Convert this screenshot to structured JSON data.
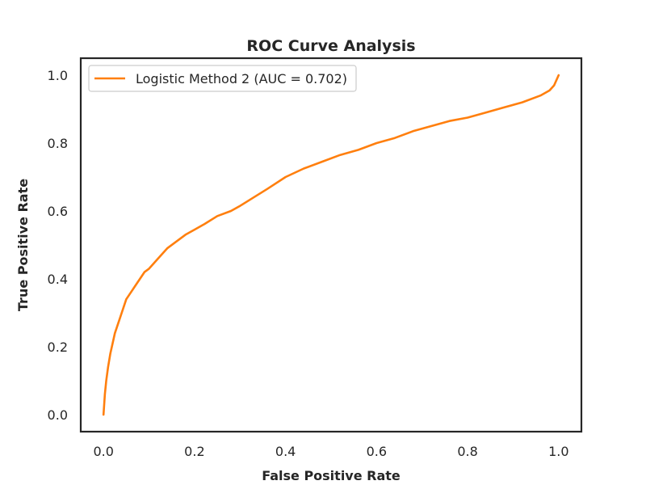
{
  "chart_data": {
    "type": "line",
    "title": "ROC Curve Analysis",
    "xlabel": "False Positive Rate",
    "ylabel": "True Positive Rate",
    "xlim": [
      -0.05,
      1.05
    ],
    "ylim": [
      -0.05,
      1.05
    ],
    "xticks": [
      0.0,
      0.2,
      0.4,
      0.6,
      0.8,
      1.0
    ],
    "yticks": [
      0.0,
      0.2,
      0.4,
      0.6,
      0.8,
      1.0
    ],
    "xtick_labels": [
      "0.0",
      "0.2",
      "0.4",
      "0.6",
      "0.8",
      "1.0"
    ],
    "ytick_labels": [
      "0.0",
      "0.2",
      "0.4",
      "0.6",
      "0.8",
      "1.0"
    ],
    "grid": false,
    "legend_position": "upper left",
    "colors": {
      "series": "#ff7f0e",
      "axes": "#262626",
      "text": "#262626",
      "legend_border": "#cccccc"
    },
    "series": [
      {
        "name": "Logistic Method 2 (AUC = 0.702)",
        "color": "#ff7f0e",
        "x": [
          0.0,
          0.003,
          0.006,
          0.01,
          0.015,
          0.02,
          0.025,
          0.03,
          0.035,
          0.04,
          0.045,
          0.05,
          0.06,
          0.07,
          0.08,
          0.09,
          0.1,
          0.12,
          0.14,
          0.16,
          0.18,
          0.2,
          0.22,
          0.25,
          0.28,
          0.3,
          0.33,
          0.36,
          0.4,
          0.44,
          0.48,
          0.52,
          0.56,
          0.6,
          0.64,
          0.68,
          0.72,
          0.76,
          0.8,
          0.84,
          0.88,
          0.92,
          0.96,
          0.98,
          0.99,
          0.995,
          1.0
        ],
        "y": [
          0.0,
          0.06,
          0.1,
          0.14,
          0.18,
          0.21,
          0.24,
          0.26,
          0.28,
          0.3,
          0.32,
          0.34,
          0.36,
          0.38,
          0.4,
          0.42,
          0.43,
          0.46,
          0.49,
          0.51,
          0.53,
          0.545,
          0.56,
          0.585,
          0.6,
          0.615,
          0.64,
          0.665,
          0.7,
          0.725,
          0.745,
          0.765,
          0.78,
          0.8,
          0.815,
          0.835,
          0.85,
          0.865,
          0.875,
          0.89,
          0.905,
          0.92,
          0.94,
          0.955,
          0.97,
          0.985,
          1.0
        ]
      }
    ]
  }
}
